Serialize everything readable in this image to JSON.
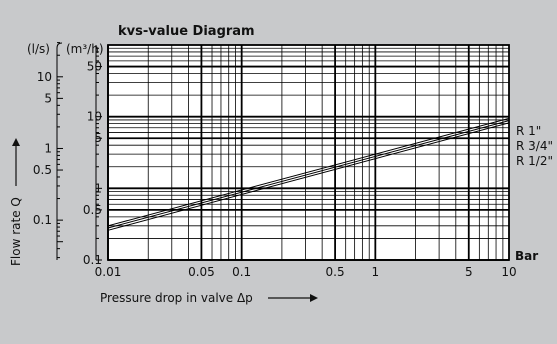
{
  "colors": {
    "background": "#c8c9cb",
    "plot_area": "#ffffff",
    "grid": "#000000",
    "curve": "#000000"
  },
  "chart_data": {
    "type": "line",
    "title": "kvs-value Diagram",
    "xlabel": "Pressure drop in valve Δp",
    "ylabel": "Flow rate Q",
    "x_unit_label": "Bar",
    "y_unit_labels": [
      "(l/s)",
      "(m³/h)"
    ],
    "xscale": "log",
    "yscale": "log",
    "xlim": [
      0.01,
      10
    ],
    "ylim_m3h": [
      0.1,
      100
    ],
    "ylim_ls": [
      0.03,
      30
    ],
    "grid": true,
    "x_ticks": [
      {
        "value": 0.01,
        "label": "0.01"
      },
      {
        "value": 0.05,
        "label": "0.05"
      },
      {
        "value": 0.1,
        "label": "0.1"
      },
      {
        "value": 0.5,
        "label": "0.5"
      },
      {
        "value": 1,
        "label": "1"
      },
      {
        "value": 5,
        "label": "5"
      },
      {
        "value": 10,
        "label": "10"
      }
    ],
    "y_ticks_m3h": [
      {
        "value": 0.1,
        "label": "0.1"
      },
      {
        "value": 0.5,
        "label": "0.5"
      },
      {
        "value": 1,
        "label": "1"
      },
      {
        "value": 5,
        "label": "5"
      },
      {
        "value": 10,
        "label": "10"
      },
      {
        "value": 50,
        "label": "50"
      }
    ],
    "y_ticks_ls": [
      {
        "value": 0.1,
        "label": "0.1"
      },
      {
        "value": 0.5,
        "label": "0.5"
      },
      {
        "value": 1,
        "label": "1"
      },
      {
        "value": 5,
        "label": "5"
      },
      {
        "value": 10,
        "label": "10"
      }
    ],
    "series": [
      {
        "name": "R 1\"",
        "label_main": "R 1\"",
        "label_frac": "",
        "x": [
          0.01,
          10
        ],
        "y": [
          0.3,
          9.5
        ]
      },
      {
        "name": "R 3/4\"",
        "label_main": "R 3/4\"",
        "label_frac": "",
        "x": [
          0.01,
          10
        ],
        "y": [
          0.28,
          8.8
        ]
      },
      {
        "name": "R 1/2\"",
        "label_main": "R 1/2\"",
        "label_frac": "",
        "x": [
          0.01,
          10
        ],
        "y": [
          0.26,
          8.2
        ]
      }
    ]
  }
}
